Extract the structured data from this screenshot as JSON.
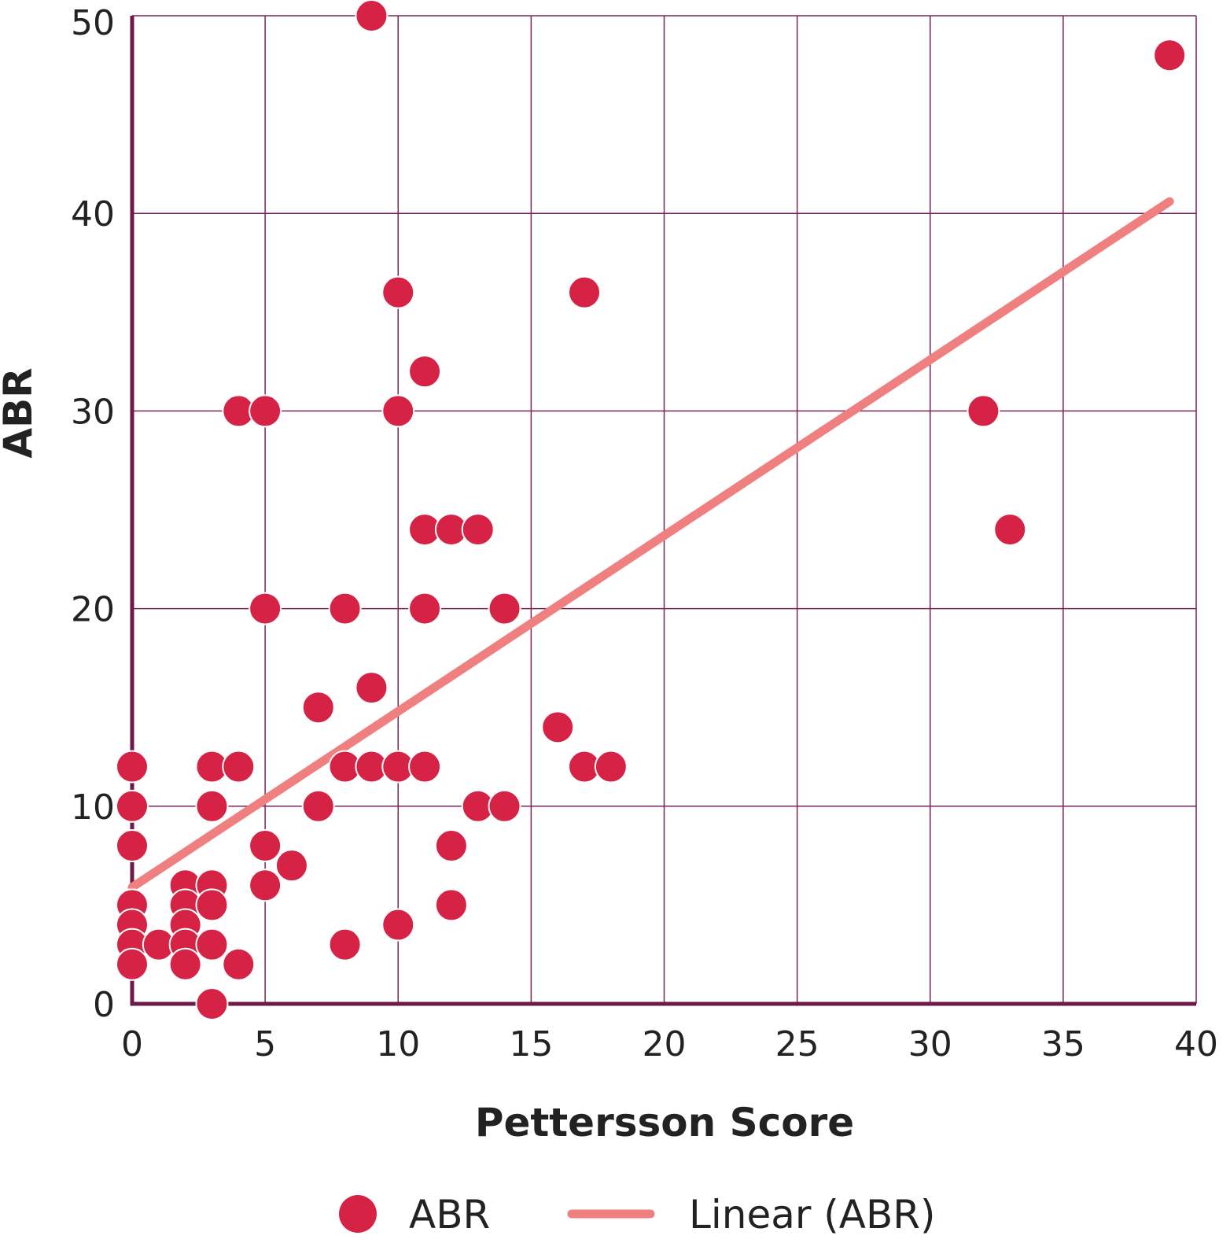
{
  "chart_data": {
    "type": "scatter",
    "xlabel": "Pettersson Score",
    "ylabel": "ABR",
    "xlim": [
      0,
      40
    ],
    "ylim": [
      0,
      50
    ],
    "x_ticks": [
      "0",
      "5",
      "10",
      "15",
      "20",
      "25",
      "30",
      "35",
      "40"
    ],
    "y_ticks": [
      "0",
      "10",
      "20",
      "30",
      "40",
      "50"
    ],
    "grid": true,
    "legend_position": "bottom",
    "colors": {
      "axis": "#6b1a4a",
      "grid": "#7a2456",
      "points": "#d62245",
      "trendline": "#f08080"
    },
    "series": [
      {
        "name": "ABR",
        "mark": "point",
        "points": [
          [
            9,
            50
          ],
          [
            39,
            48
          ],
          [
            10,
            36
          ],
          [
            17,
            36
          ],
          [
            11,
            32
          ],
          [
            4,
            30
          ],
          [
            5,
            30
          ],
          [
            10,
            30
          ],
          [
            32,
            30
          ],
          [
            11,
            24
          ],
          [
            12,
            24
          ],
          [
            13,
            24
          ],
          [
            33,
            24
          ],
          [
            5,
            20
          ],
          [
            8,
            20
          ],
          [
            11,
            20
          ],
          [
            14,
            20
          ],
          [
            9,
            16
          ],
          [
            7,
            15
          ],
          [
            16,
            14
          ],
          [
            0,
            12
          ],
          [
            3,
            12
          ],
          [
            4,
            12
          ],
          [
            8,
            12
          ],
          [
            9,
            12
          ],
          [
            10,
            12
          ],
          [
            11,
            12
          ],
          [
            17,
            12
          ],
          [
            18,
            12
          ],
          [
            0,
            10
          ],
          [
            3,
            10
          ],
          [
            7,
            10
          ],
          [
            13,
            10
          ],
          [
            14,
            10
          ],
          [
            0,
            8
          ],
          [
            5,
            8
          ],
          [
            12,
            8
          ],
          [
            6,
            7
          ],
          [
            2,
            6
          ],
          [
            3,
            6
          ],
          [
            5,
            6
          ],
          [
            0,
            5
          ],
          [
            2,
            5
          ],
          [
            3,
            5
          ],
          [
            12,
            5
          ],
          [
            0,
            4
          ],
          [
            2,
            4
          ],
          [
            10,
            4
          ],
          [
            0,
            3
          ],
          [
            1,
            3
          ],
          [
            2,
            3
          ],
          [
            3,
            3
          ],
          [
            8,
            3
          ],
          [
            0,
            2
          ],
          [
            2,
            2
          ],
          [
            4,
            2
          ],
          [
            3,
            0
          ]
        ]
      },
      {
        "name": "Linear (ABR)",
        "mark": "line",
        "points": [
          [
            0,
            5.9
          ],
          [
            39,
            40.6
          ]
        ]
      }
    ]
  }
}
